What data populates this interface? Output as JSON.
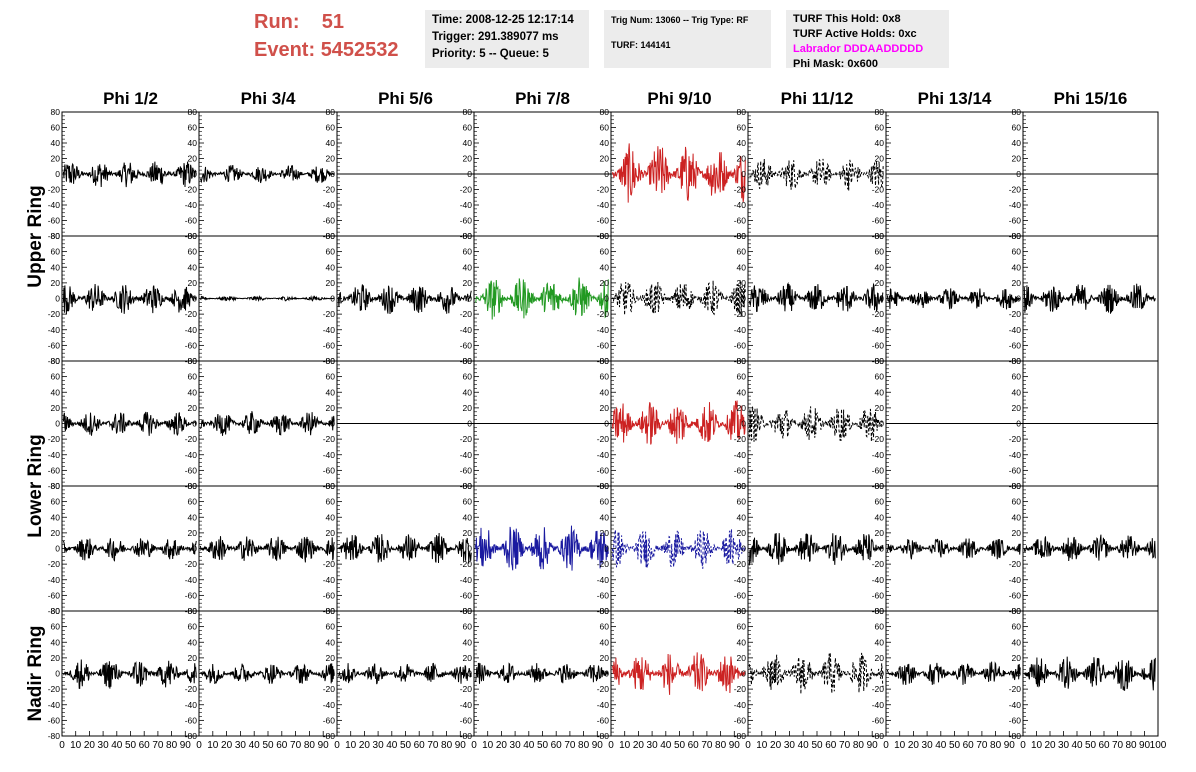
{
  "header": {
    "run_label": "Run:",
    "run_value": "51",
    "event_label": "Event:",
    "event_value": "5452532",
    "time": "Time: 2008-12-25 12:17:14",
    "trigger": "Trigger: 291.389077 ms",
    "priority": "Priority: 5 -- Queue: 5",
    "trig_num": "Trig Num: 13060 -- Trig Type: RF",
    "turf": "TURF: 144141",
    "turf_this_hold": "TURF This Hold: 0x8",
    "turf_active_holds": "TURF Active Holds: 0xc",
    "labrador": "Labrador DDDAADDDDD",
    "phi_mask": "Phi Mask: 0x600"
  },
  "colors": {
    "run": "#d0504a",
    "labrador": "#ff00ff",
    "black": "#000000",
    "red": "#cc2222",
    "green": "#229922",
    "blue": "#1a1aa0",
    "header_box": "#ececec"
  },
  "chart_data": {
    "type": "line",
    "layout": "grid of waveform panels, 5 rows x 8 columns",
    "columns": [
      "Phi 1/2",
      "Phi 3/4",
      "Phi 5/6",
      "Phi 7/8",
      "Phi 9/10",
      "Phi 11/12",
      "Phi 13/14",
      "Phi 15/16"
    ],
    "ring_labels": [
      {
        "label": "Upper Ring",
        "rows": [
          0,
          1
        ]
      },
      {
        "label": "Lower Ring",
        "rows": [
          2,
          3
        ]
      },
      {
        "label": "Nadir Ring",
        "rows": [
          4
        ]
      }
    ],
    "xlim": [
      0,
      100
    ],
    "ylim": [
      -80,
      80
    ],
    "x_ticks": [
      0,
      10,
      20,
      30,
      40,
      50,
      60,
      70,
      80,
      90,
      100
    ],
    "y_ticks": [
      -80,
      -60,
      -40,
      -20,
      0,
      20,
      40,
      60,
      80
    ],
    "panels": [
      [
        {
          "amp": 18,
          "color": "black",
          "style": "solid"
        },
        {
          "amp": 12,
          "color": "black",
          "style": "solid"
        },
        {
          "amp": 0,
          "color": "black",
          "style": "flat"
        },
        {
          "amp": 0,
          "color": "black",
          "style": "flat"
        },
        {
          "amp": 40,
          "color": "red",
          "style": "solid"
        },
        {
          "amp": 22,
          "color": "black",
          "style": "dashed"
        },
        {
          "amp": 0,
          "color": "black",
          "style": "flat"
        },
        {
          "amp": 0,
          "color": "black",
          "style": "flat"
        }
      ],
      [
        {
          "amp": 20,
          "color": "black",
          "style": "solid"
        },
        {
          "amp": 3,
          "color": "black",
          "style": "solid"
        },
        {
          "amp": 20,
          "color": "black",
          "style": "solid"
        },
        {
          "amp": 28,
          "color": "green",
          "style": "solid"
        },
        {
          "amp": 24,
          "color": "black",
          "style": "dashed"
        },
        {
          "amp": 20,
          "color": "black",
          "style": "solid"
        },
        {
          "amp": 14,
          "color": "black",
          "style": "solid"
        },
        {
          "amp": 20,
          "color": "black",
          "style": "solid"
        }
      ],
      [
        {
          "amp": 16,
          "color": "black",
          "style": "solid"
        },
        {
          "amp": 16,
          "color": "black",
          "style": "solid"
        },
        {
          "amp": 0,
          "color": "black",
          "style": "flat"
        },
        {
          "amp": 0,
          "color": "black",
          "style": "flat"
        },
        {
          "amp": 30,
          "color": "red",
          "style": "solid"
        },
        {
          "amp": 24,
          "color": "black",
          "style": "dashed"
        },
        {
          "amp": 0,
          "color": "black",
          "style": "flat"
        },
        {
          "amp": 0,
          "color": "black",
          "style": "flat"
        }
      ],
      [
        {
          "amp": 16,
          "color": "black",
          "style": "solid"
        },
        {
          "amp": 18,
          "color": "black",
          "style": "solid"
        },
        {
          "amp": 20,
          "color": "black",
          "style": "solid"
        },
        {
          "amp": 30,
          "color": "blue",
          "style": "solid"
        },
        {
          "amp": 26,
          "color": "blue",
          "style": "dashed"
        },
        {
          "amp": 22,
          "color": "black",
          "style": "solid"
        },
        {
          "amp": 14,
          "color": "black",
          "style": "solid"
        },
        {
          "amp": 18,
          "color": "black",
          "style": "solid"
        }
      ],
      [
        {
          "amp": 20,
          "color": "black",
          "style": "solid"
        },
        {
          "amp": 14,
          "color": "black",
          "style": "solid"
        },
        {
          "amp": 14,
          "color": "black",
          "style": "solid"
        },
        {
          "amp": 14,
          "color": "black",
          "style": "solid"
        },
        {
          "amp": 28,
          "color": "red",
          "style": "solid"
        },
        {
          "amp": 28,
          "color": "black",
          "style": "dashed"
        },
        {
          "amp": 16,
          "color": "black",
          "style": "solid"
        },
        {
          "amp": 22,
          "color": "black",
          "style": "solid"
        }
      ]
    ]
  }
}
